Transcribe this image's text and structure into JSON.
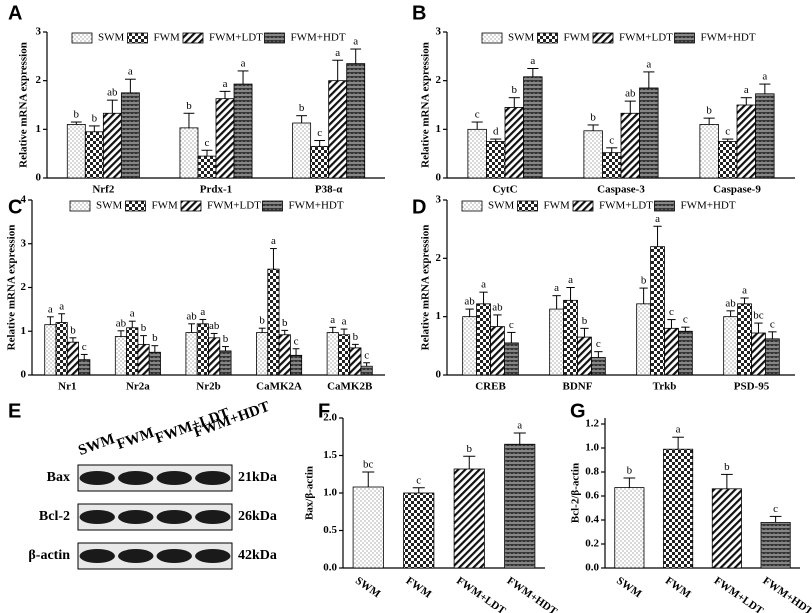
{
  "chart_data": [
    {
      "type": "grouped_bar",
      "label": "A",
      "ylabel": "Relative mRNA expression",
      "ylim": [
        0,
        3
      ],
      "yticks": [
        0,
        1,
        2,
        3
      ],
      "categories": [
        "Nrf2",
        "Prdx-1",
        "P38-α"
      ],
      "series": [
        {
          "name": "SWM",
          "pattern": "dots",
          "values": [
            1.1,
            1.03,
            1.13
          ],
          "errors": [
            0.05,
            0.3,
            0.15
          ],
          "letters": [
            "b",
            "b",
            "b"
          ]
        },
        {
          "name": "FWM",
          "pattern": "checker",
          "values": [
            0.95,
            0.45,
            0.65
          ],
          "errors": [
            0.12,
            0.12,
            0.12
          ],
          "letters": [
            "b",
            "c",
            "c"
          ]
        },
        {
          "name": "FWM+LDT",
          "pattern": "stripes",
          "values": [
            1.33,
            1.63,
            2.0
          ],
          "errors": [
            0.27,
            0.15,
            0.42
          ],
          "letters": [
            "ab",
            "a",
            "a"
          ]
        },
        {
          "name": "FWM+HDT",
          "pattern": "hstripes",
          "values": [
            1.75,
            1.93,
            2.35
          ],
          "errors": [
            0.28,
            0.27,
            0.3
          ],
          "letters": [
            "a",
            "a",
            "a"
          ]
        }
      ]
    },
    {
      "type": "grouped_bar",
      "label": "B",
      "ylabel": "Relative mRNA expression",
      "ylim": [
        0,
        3
      ],
      "yticks": [
        0,
        1,
        2,
        3
      ],
      "categories": [
        "CytC",
        "Caspase-3",
        "Caspase-9"
      ],
      "series": [
        {
          "name": "SWM",
          "pattern": "dots",
          "values": [
            1.0,
            0.97,
            1.1
          ],
          "errors": [
            0.15,
            0.12,
            0.13
          ],
          "letters": [
            "c",
            "b",
            "b"
          ]
        },
        {
          "name": "FWM",
          "pattern": "checker",
          "values": [
            0.75,
            0.52,
            0.75
          ],
          "errors": [
            0.05,
            0.1,
            0.05
          ],
          "letters": [
            "d",
            "c",
            "c"
          ]
        },
        {
          "name": "FWM+LDT",
          "pattern": "stripes",
          "values": [
            1.45,
            1.33,
            1.5
          ],
          "errors": [
            0.2,
            0.25,
            0.15
          ],
          "letters": [
            "b",
            "ab",
            "a"
          ]
        },
        {
          "name": "FWM+HDT",
          "pattern": "hstripes",
          "values": [
            2.08,
            1.85,
            1.73
          ],
          "errors": [
            0.17,
            0.33,
            0.2
          ],
          "letters": [
            "a",
            "a",
            "a"
          ]
        }
      ]
    },
    {
      "type": "grouped_bar",
      "label": "C",
      "ylabel": "Relative mRNA expression",
      "ylim": [
        0,
        4
      ],
      "yticks": [
        0,
        1,
        2,
        3,
        4
      ],
      "categories": [
        "Nr1",
        "Nr2a",
        "Nr2b",
        "CaMK2A",
        "CaMK2B"
      ],
      "series": [
        {
          "name": "SWM",
          "pattern": "dots",
          "values": [
            1.15,
            0.88,
            0.97,
            0.97,
            0.97
          ],
          "errors": [
            0.18,
            0.13,
            0.2,
            0.1,
            0.12
          ],
          "letters": [
            "a",
            "ab",
            "ab",
            "b",
            "a"
          ]
        },
        {
          "name": "FWM",
          "pattern": "checker",
          "values": [
            1.2,
            1.08,
            1.17,
            2.42,
            0.92
          ],
          "errors": [
            0.2,
            0.15,
            0.1,
            0.47,
            0.13
          ],
          "letters": [
            "a",
            "a",
            "a",
            "a",
            "a"
          ]
        },
        {
          "name": "FWM+LDT",
          "pattern": "stripes",
          "values": [
            0.75,
            0.7,
            0.85,
            0.92,
            0.62
          ],
          "errors": [
            0.1,
            0.2,
            0.1,
            0.1,
            0.08
          ],
          "letters": [
            "b",
            "b",
            "ab",
            "b",
            "b"
          ]
        },
        {
          "name": "FWM+HDT",
          "pattern": "hstripes",
          "values": [
            0.35,
            0.52,
            0.55,
            0.45,
            0.2
          ],
          "errors": [
            0.12,
            0.15,
            0.1,
            0.15,
            0.08
          ],
          "letters": [
            "c",
            "b",
            "b",
            "c",
            "c"
          ]
        }
      ]
    },
    {
      "type": "grouped_bar",
      "label": "D",
      "ylabel": "Relative mRNA expression",
      "ylim": [
        0,
        3
      ],
      "yticks": [
        0,
        1,
        2,
        3
      ],
      "categories": [
        "CREB",
        "BDNF",
        "Trkb",
        "PSD-95"
      ],
      "series": [
        {
          "name": "SWM",
          "pattern": "dots",
          "values": [
            1.0,
            1.13,
            1.22,
            1.0
          ],
          "errors": [
            0.13,
            0.23,
            0.27,
            0.1
          ],
          "letters": [
            "ab",
            "a",
            "b",
            "ab"
          ]
        },
        {
          "name": "FWM",
          "pattern": "checker",
          "values": [
            1.22,
            1.28,
            2.2,
            1.22
          ],
          "errors": [
            0.2,
            0.22,
            0.35,
            0.1
          ],
          "letters": [
            "a",
            "a",
            "a",
            "a"
          ]
        },
        {
          "name": "FWM+LDT",
          "pattern": "stripes",
          "values": [
            0.83,
            0.65,
            0.8,
            0.72
          ],
          "errors": [
            0.2,
            0.15,
            0.15,
            0.17
          ],
          "letters": [
            "ab",
            "b",
            "c",
            "bc"
          ]
        },
        {
          "name": "FWM+HDT",
          "pattern": "hstripes",
          "values": [
            0.55,
            0.3,
            0.75,
            0.62
          ],
          "errors": [
            0.18,
            0.1,
            0.07,
            0.12
          ],
          "letters": [
            "c",
            "c",
            "c",
            "c"
          ]
        }
      ]
    },
    {
      "type": "bar",
      "label": "F",
      "ylabel": "Bax/β-actin",
      "ylim": [
        0,
        2
      ],
      "yticks": [
        {
          "value": 0,
          "label": "0.0"
        },
        0.5,
        {
          "value": 1,
          "label": "1.0"
        },
        1.5,
        {
          "value": 2,
          "label": "2.0"
        }
      ],
      "categories": [
        "SWM",
        "FWM",
        "FWM+LDT",
        "FWM+HDT"
      ],
      "patterns": [
        "dots",
        "checker",
        "stripes",
        "hstripes"
      ],
      "values": [
        1.08,
        1.0,
        1.32,
        1.65
      ],
      "errors": [
        0.2,
        0.07,
        0.17,
        0.15
      ],
      "letters": [
        "bc",
        "c",
        "b",
        "a"
      ]
    },
    {
      "type": "bar",
      "label": "G",
      "ylabel": "Bcl-2/β-actin",
      "ylim": [
        0,
        1.25
      ],
      "yticks": [
        {
          "value": 0,
          "label": "0.0"
        },
        0.2,
        0.4,
        0.6,
        0.8,
        {
          "value": 1,
          "label": "1.0"
        },
        1.2
      ],
      "categories": [
        "SWM",
        "FWM",
        "FWM+LDT",
        "FWM+HDT"
      ],
      "patterns": [
        "dots",
        "checker",
        "stripes",
        "hstripes"
      ],
      "values": [
        0.67,
        0.99,
        0.66,
        0.38
      ],
      "errors": [
        0.08,
        0.1,
        0.12,
        0.05
      ],
      "letters": [
        "b",
        "a",
        "b",
        "c"
      ]
    }
  ],
  "blot": {
    "label": "E",
    "lanes": [
      "SWM",
      "FWM",
      "FWM+LDT",
      "FWM+HDT"
    ],
    "rows": [
      {
        "name": "Bax",
        "size": "21kDa"
      },
      {
        "name": "Bcl-2",
        "size": "26kDa"
      },
      {
        "name": "β-actin",
        "size": "42kDa"
      }
    ]
  }
}
